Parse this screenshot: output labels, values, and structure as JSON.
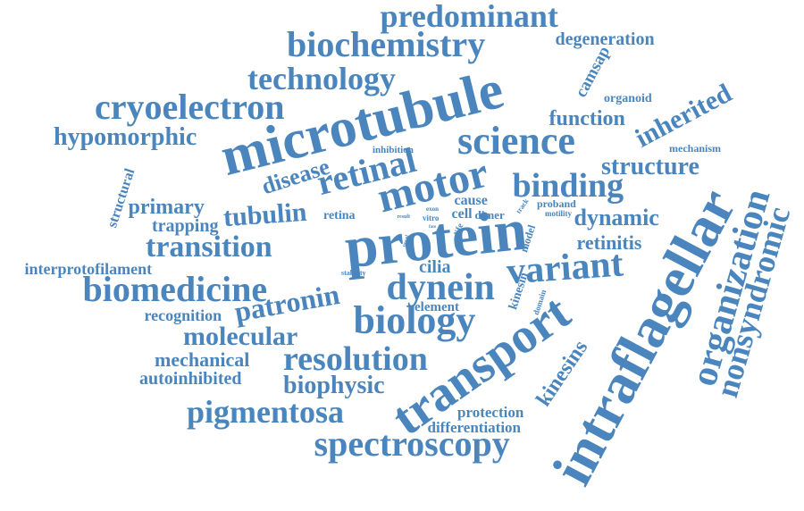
{
  "color": "#4a86bd",
  "words": [
    "predominant",
    "biochemistry",
    "degeneration",
    "technology",
    "camsap",
    "cryoelectron",
    "microtubule",
    "organoid",
    "function",
    "hypomorphic",
    "inherited",
    "science",
    "inhibition",
    "mechanism",
    "retinal",
    "disease",
    "structure",
    "structural",
    "motor",
    "binding",
    "primary",
    "trapping",
    "tubulin",
    "retina",
    "result",
    "exon",
    "cause",
    "cell",
    "dimer",
    "track",
    "proband",
    "motility",
    "dynamic",
    "transition",
    "protein",
    "life",
    "novel",
    "fate",
    "model",
    "retinitis",
    "interprotofilament",
    "cilia",
    "stability",
    "biomedicine",
    "patronin",
    "dynein",
    "variant",
    "kinesin",
    "domain",
    "element",
    "recognition",
    "biology",
    "molecular",
    "mechanical",
    "resolution",
    "autoinhibited",
    "biophysic",
    "kinesins",
    "pigmentosa",
    "transport",
    "protection",
    "differentiation",
    "spectroscopy",
    "intraflagellar",
    "organization",
    "nonsyndromic",
    "vitro"
  ]
}
